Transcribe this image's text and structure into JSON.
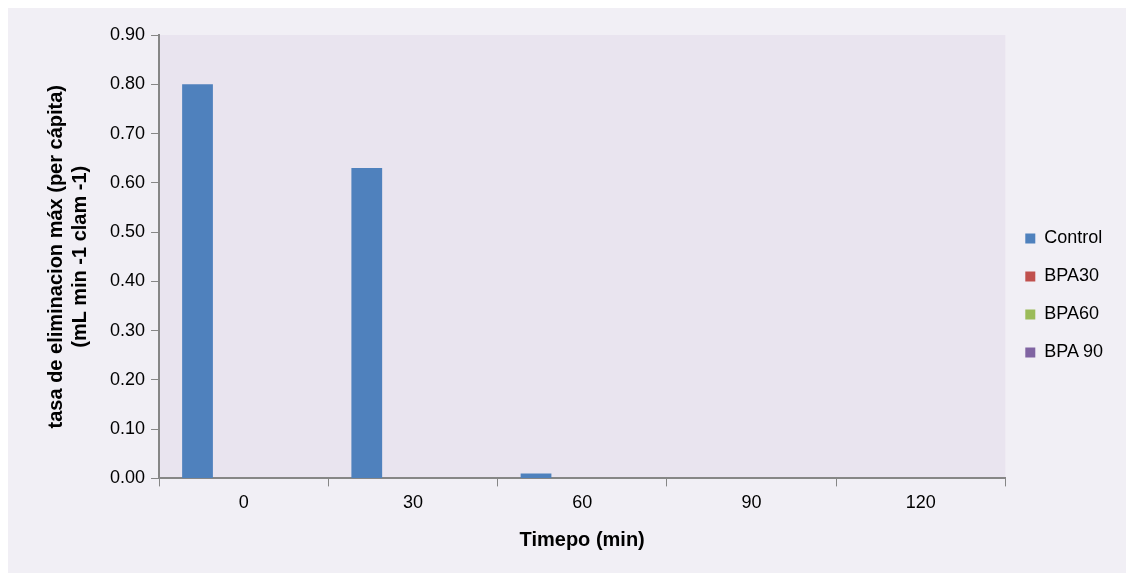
{
  "chart_data": {
    "type": "bar",
    "xlabel": "Timepo (min)",
    "ylabel": "tasa de eliminacion máx (per cápita) (mL min -1 clam -1)",
    "categories": [
      "0",
      "30",
      "60",
      "90",
      "120"
    ],
    "series": [
      {
        "name": "Control",
        "color": "#4f81bd",
        "values": [
          0.8,
          0.63,
          0.01,
          0,
          0
        ]
      },
      {
        "name": "BPA30",
        "color": "#c0504d",
        "values": [
          0,
          0,
          0,
          0,
          0
        ]
      },
      {
        "name": "BPA60",
        "color": "#9bbb59",
        "values": [
          0,
          0,
          0,
          0,
          0
        ]
      },
      {
        "name": "BPA 90",
        "color": "#8064a2",
        "values": [
          0,
          0,
          0,
          0,
          0
        ]
      }
    ],
    "ylim": [
      0,
      0.9
    ],
    "yticks": [
      {
        "value": 0,
        "label": "0.00"
      },
      {
        "value": 0.1,
        "label": "0.10"
      },
      {
        "value": 0.2,
        "label": "0.20"
      },
      {
        "value": 0.3,
        "label": "0.30"
      },
      {
        "value": 0.4,
        "label": "0.40"
      },
      {
        "value": 0.5,
        "label": "0.50"
      },
      {
        "value": 0.6,
        "label": "0.60"
      },
      {
        "value": 0.7,
        "label": "0.70"
      },
      {
        "value": 0.8,
        "label": "0.80"
      },
      {
        "value": 0.9,
        "label": "0.90"
      }
    ],
    "grid": false,
    "legend": "right"
  }
}
